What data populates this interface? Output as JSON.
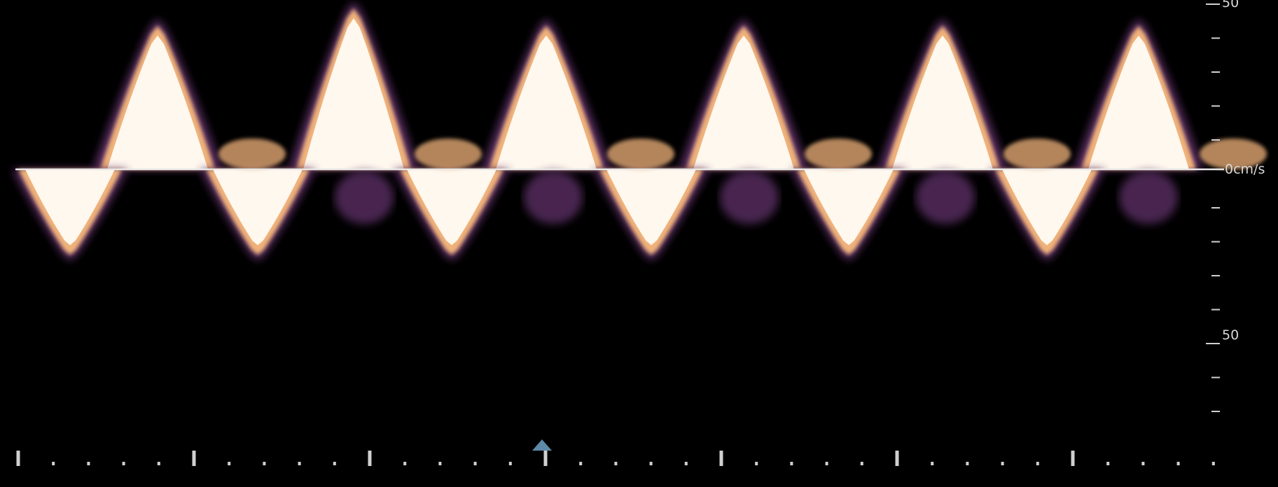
{
  "velocity_scale": {
    "top_label": "50",
    "baseline_label": "0cm/s",
    "bottom_label": "50",
    "range_cm_s": [
      -93,
      50
    ]
  },
  "waveform": {
    "cycles": 6,
    "positive_peak_cm_s": 48,
    "negative_peak_cm_s": -28
  },
  "colors": {
    "background": "#000000",
    "flow_core": "#fff8ee",
    "flow_mid": "#f0b27a",
    "flow_edge": "#5a2f63",
    "baseline": "#e8e8e8",
    "scale": "#d0d0d0",
    "marker": "#5e8aa8"
  },
  "icons": {
    "marker": "triangle-up-icon"
  }
}
